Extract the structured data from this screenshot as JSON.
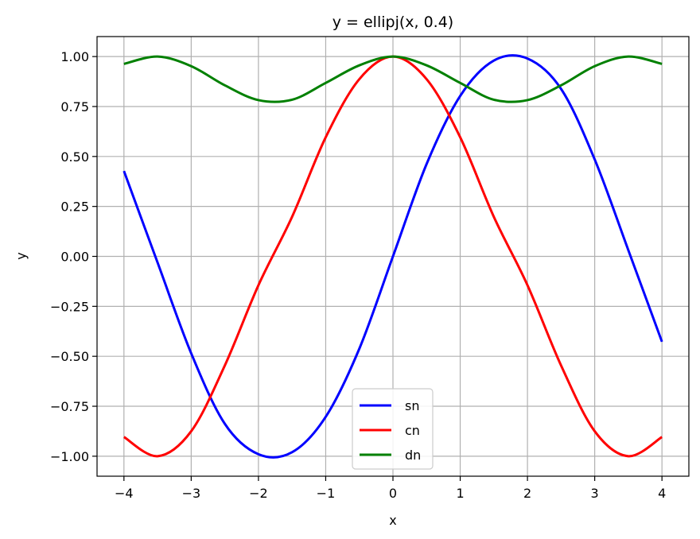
{
  "chart_data": {
    "type": "line",
    "title": "y = ellipj(x, 0.4)",
    "xlabel": "x",
    "ylabel": "y",
    "xlim": [
      -4.4,
      4.4
    ],
    "ylim": [
      -1.1,
      1.1
    ],
    "xticks": [
      -4,
      -3,
      -2,
      -1,
      0,
      1,
      2,
      3,
      4
    ],
    "xtick_labels": [
      "−4",
      "−3",
      "−2",
      "−1",
      "0",
      "1",
      "2",
      "3",
      "4"
    ],
    "yticks": [
      -1.0,
      -0.75,
      -0.5,
      -0.25,
      0.0,
      0.25,
      0.5,
      0.75,
      1.0
    ],
    "ytick_labels": [
      "−1.00",
      "−0.75",
      "−0.50",
      "−0.25",
      "0.00",
      "0.25",
      "0.50",
      "0.75",
      "1.00"
    ],
    "grid": true,
    "legend_position": "bottom-center",
    "x": [
      -4,
      -3.5,
      -3,
      -2.5,
      -2,
      -1.5,
      -1,
      -0.5,
      0,
      0.5,
      1,
      1.5,
      2,
      2.5,
      3,
      3.5,
      4
    ],
    "series": [
      {
        "name": "sn",
        "color": "#0000ff",
        "values": [
          0.427,
          -0.031,
          -0.485,
          -0.838,
          -0.99,
          -0.98,
          -0.803,
          -0.462,
          0.0,
          0.462,
          0.803,
          0.98,
          0.99,
          0.838,
          0.485,
          0.031,
          -0.427
        ]
      },
      {
        "name": "cn",
        "color": "#ff0000",
        "values": [
          -0.904,
          -1.0,
          -0.875,
          -0.546,
          -0.144,
          0.198,
          0.596,
          0.887,
          1.0,
          0.887,
          0.596,
          0.198,
          -0.144,
          -0.546,
          -0.875,
          -1.0,
          -0.904
        ]
      },
      {
        "name": "dn",
        "color": "#008000",
        "values": [
          0.963,
          1.0,
          0.952,
          0.856,
          0.782,
          0.784,
          0.868,
          0.956,
          1.0,
          0.956,
          0.868,
          0.784,
          0.782,
          0.856,
          0.952,
          1.0,
          0.963
        ]
      }
    ]
  }
}
